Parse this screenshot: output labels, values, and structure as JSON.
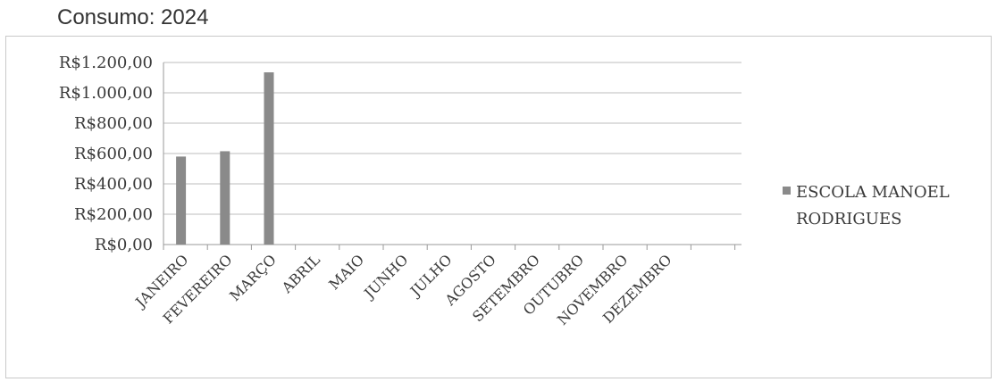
{
  "page": {
    "title": "Consumo: 2024"
  },
  "chart_data": {
    "type": "bar",
    "categories": [
      "JANEIRO",
      "FEVEREIRO",
      "MARÇO",
      "ABRIL",
      "MAIO",
      "JUNHO",
      "JULHO",
      "AGOSTO",
      "SETEMBRO",
      "OUTUBRO",
      "NOVEMBRO",
      "DEZEMBRO"
    ],
    "series": [
      {
        "name": "ESCOLA MANOEL RODRIGUES",
        "values": [
          580,
          615,
          1135,
          null,
          null,
          null,
          null,
          null,
          null,
          null,
          null,
          null
        ],
        "color": "#8a8a8a"
      }
    ],
    "yticks": [
      {
        "value": 0,
        "label": "R$0,00"
      },
      {
        "value": 200,
        "label": "R$200,00"
      },
      {
        "value": 400,
        "label": "R$400,00"
      },
      {
        "value": 600,
        "label": "R$600,00"
      },
      {
        "value": 800,
        "label": "R$800,00"
      },
      {
        "value": 1000,
        "label": "R$1.000,00"
      },
      {
        "value": 1200,
        "label": "R$1.200,00"
      }
    ],
    "ylim": [
      0,
      1200
    ],
    "grid": true,
    "legend": {
      "position": "right",
      "lines": [
        "ESCOLA MANOEL",
        "RODRIGUES"
      ]
    }
  }
}
